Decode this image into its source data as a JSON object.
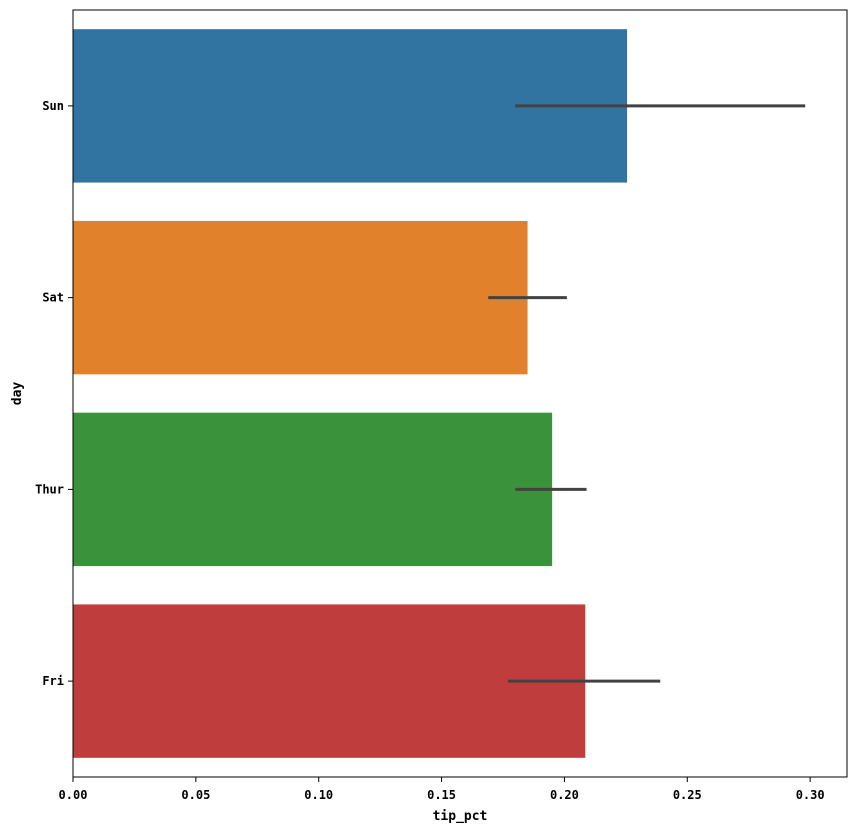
{
  "chart_data": {
    "type": "bar",
    "orientation": "horizontal",
    "categories": [
      "Sun",
      "Sat",
      "Thur",
      "Fri"
    ],
    "values": [
      0.2255,
      0.185,
      0.195,
      0.2085
    ],
    "error_bars": [
      [
        0.18,
        0.298
      ],
      [
        0.169,
        0.201
      ],
      [
        0.18,
        0.209
      ],
      [
        0.177,
        0.239
      ]
    ],
    "colors": [
      "#3274a1",
      "#e1812c",
      "#3a923a",
      "#c03d3e"
    ],
    "error_color": "#424242",
    "xlabel": "tip_pct",
    "ylabel": "day",
    "xlim": [
      0,
      0.315
    ],
    "xticks": [
      0.0,
      0.05,
      0.1,
      0.15,
      0.2,
      0.25,
      0.3
    ],
    "xtick_labels": [
      "0.00",
      "0.05",
      "0.10",
      "0.15",
      "0.20",
      "0.25",
      "0.30"
    ],
    "grid": false
  }
}
